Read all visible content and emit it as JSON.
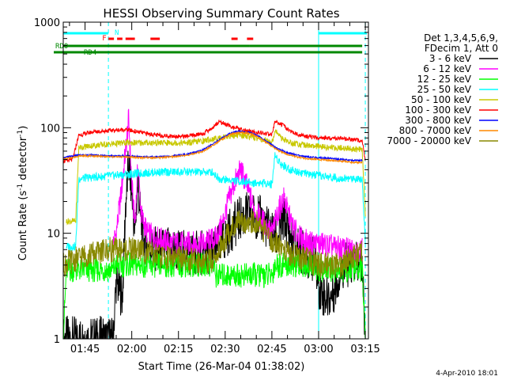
{
  "chart_data": {
    "type": "line",
    "title": "HESSI Observing Summary Count Rates",
    "xlabel": "Start Time (26-Mar-04 01:38:02)",
    "ylabel_main": "Count Rate (s",
    "ylabel_sup1": "-1",
    "ylabel_mid": " detector",
    "ylabel_sup2": "-1",
    "ylabel_end": ")",
    "yscale": "log",
    "ylim": [
      1,
      1000
    ],
    "xlim_min": [
      0,
      98
    ],
    "x_ticks": [
      {
        "min": 7,
        "label": "01:45"
      },
      {
        "min": 22,
        "label": "02:00"
      },
      {
        "min": 37,
        "label": "02:15"
      },
      {
        "min": 52,
        "label": "02:30"
      },
      {
        "min": 67,
        "label": "02:45"
      },
      {
        "min": 82,
        "label": "03:00"
      },
      {
        "min": 97,
        "label": "03:15"
      }
    ],
    "y_ticks": [
      {
        "v": 1,
        "label": "1"
      },
      {
        "v": 10,
        "label": "10"
      },
      {
        "v": 100,
        "label": "100"
      },
      {
        "v": 1000,
        "label": "1000"
      }
    ],
    "legend_header": [
      "Det 1,3,4,5,6,9,",
      "FDecim 1, Att 0"
    ],
    "series": [
      {
        "name": "3 - 6 keV",
        "color": "#000000",
        "points": [
          [
            0,
            1.0
          ],
          [
            2,
            1.0
          ],
          [
            16,
            1.0
          ],
          [
            17,
            3.5
          ],
          [
            19,
            2.5
          ],
          [
            20,
            18
          ],
          [
            21,
            45
          ],
          [
            22,
            25
          ],
          [
            23,
            10
          ],
          [
            24,
            30
          ],
          [
            25,
            12
          ],
          [
            26,
            8
          ],
          [
            30,
            7
          ],
          [
            35,
            7
          ],
          [
            40,
            6.5
          ],
          [
            45,
            6.5
          ],
          [
            49,
            7
          ],
          [
            51,
            8
          ],
          [
            53,
            10
          ],
          [
            55,
            12
          ],
          [
            57,
            14
          ],
          [
            59,
            15
          ],
          [
            61,
            15
          ],
          [
            63,
            14
          ],
          [
            65,
            12
          ],
          [
            67,
            10
          ],
          [
            69,
            9
          ],
          [
            71,
            14
          ],
          [
            72,
            11
          ],
          [
            74,
            8
          ],
          [
            76,
            7
          ],
          [
            79,
            6
          ],
          [
            81,
            5.5
          ],
          [
            82,
            3.2
          ],
          [
            84,
            2.5
          ],
          [
            86,
            2.5
          ],
          [
            90,
            5
          ],
          [
            93,
            5
          ],
          [
            96,
            5
          ],
          [
            97,
            1.0
          ]
        ]
      },
      {
        "name": "6 - 12 keV",
        "color": "#ff00ff",
        "points": [
          [
            16,
            8
          ],
          [
            17,
            10
          ],
          [
            19,
            30
          ],
          [
            20,
            60
          ],
          [
            21,
            120
          ],
          [
            22,
            30
          ],
          [
            23,
            12
          ],
          [
            24,
            45
          ],
          [
            25,
            15
          ],
          [
            27,
            10
          ],
          [
            30,
            9
          ],
          [
            35,
            8
          ],
          [
            40,
            8
          ],
          [
            45,
            8
          ],
          [
            49,
            9
          ],
          [
            51,
            12
          ],
          [
            53,
            20
          ],
          [
            55,
            30
          ],
          [
            57,
            40
          ],
          [
            59,
            28
          ],
          [
            61,
            18
          ],
          [
            63,
            14
          ],
          [
            65,
            12
          ],
          [
            67,
            10
          ],
          [
            69,
            16
          ],
          [
            71,
            22
          ],
          [
            72,
            16
          ],
          [
            74,
            11
          ],
          [
            76,
            9
          ],
          [
            79,
            8
          ],
          [
            82,
            8
          ],
          [
            86,
            7.5
          ],
          [
            90,
            7
          ],
          [
            93,
            7
          ],
          [
            96,
            7
          ]
        ]
      },
      {
        "name": "12 - 25 keV",
        "color": "#00ff00",
        "points": [
          [
            0,
            1.0
          ],
          [
            1,
            4.5
          ],
          [
            5,
            4.5
          ],
          [
            10,
            4.5
          ],
          [
            16,
            4.5
          ],
          [
            17,
            5
          ],
          [
            20,
            5
          ],
          [
            25,
            5
          ],
          [
            30,
            5
          ],
          [
            35,
            5
          ],
          [
            40,
            5
          ],
          [
            48,
            5
          ],
          [
            49,
            4
          ],
          [
            53,
            4
          ],
          [
            58,
            4
          ],
          [
            63,
            4
          ],
          [
            67,
            4
          ],
          [
            68,
            5
          ],
          [
            72,
            5
          ],
          [
            77,
            5
          ],
          [
            80,
            5
          ],
          [
            82,
            4.5
          ],
          [
            86,
            4.5
          ],
          [
            90,
            4.5
          ],
          [
            96,
            4.5
          ],
          [
            97,
            1.0
          ]
        ]
      },
      {
        "name": "25 - 50 keV",
        "color": "#00ffff",
        "points": [
          [
            1,
            7.5
          ],
          [
            2,
            7.5
          ],
          [
            4,
            7.5
          ],
          [
            5,
            33
          ],
          [
            10,
            34
          ],
          [
            15,
            35
          ],
          [
            20,
            36
          ],
          [
            25,
            37
          ],
          [
            30,
            38
          ],
          [
            35,
            38
          ],
          [
            40,
            38
          ],
          [
            45,
            38
          ],
          [
            48,
            38
          ],
          [
            50,
            33
          ],
          [
            53,
            32
          ],
          [
            57,
            31
          ],
          [
            61,
            30
          ],
          [
            65,
            30
          ],
          [
            67,
            29
          ],
          [
            68,
            55
          ],
          [
            70,
            45
          ],
          [
            73,
            40
          ],
          [
            76,
            38
          ],
          [
            79,
            36
          ],
          [
            82,
            35
          ],
          [
            86,
            34
          ],
          [
            90,
            33
          ],
          [
            93,
            33
          ],
          [
            96,
            33
          ],
          [
            97,
            8
          ]
        ]
      },
      {
        "name": "50 - 100 keV",
        "color": "#c8c800",
        "points": [
          [
            1,
            13
          ],
          [
            4,
            13
          ],
          [
            5,
            65
          ],
          [
            10,
            68
          ],
          [
            15,
            70
          ],
          [
            20,
            72
          ],
          [
            25,
            72
          ],
          [
            30,
            72
          ],
          [
            35,
            72
          ],
          [
            40,
            72
          ],
          [
            45,
            75
          ],
          [
            48,
            78
          ],
          [
            50,
            80
          ],
          [
            53,
            83
          ],
          [
            56,
            85
          ],
          [
            59,
            84
          ],
          [
            62,
            80
          ],
          [
            65,
            75
          ],
          [
            67,
            72
          ],
          [
            68,
            95
          ],
          [
            70,
            80
          ],
          [
            73,
            72
          ],
          [
            76,
            70
          ],
          [
            79,
            68
          ],
          [
            82,
            66
          ],
          [
            86,
            65
          ],
          [
            90,
            64
          ],
          [
            93,
            63
          ],
          [
            96,
            62
          ],
          [
            97,
            15
          ]
        ]
      },
      {
        "name": "100 - 300 keV",
        "color": "#ff0000",
        "points": [
          [
            0,
            48
          ],
          [
            3,
            50
          ],
          [
            5,
            85
          ],
          [
            10,
            92
          ],
          [
            15,
            94
          ],
          [
            20,
            96
          ],
          [
            25,
            90
          ],
          [
            30,
            85
          ],
          [
            35,
            83
          ],
          [
            40,
            83
          ],
          [
            45,
            88
          ],
          [
            48,
            100
          ],
          [
            50,
            115
          ],
          [
            53,
            105
          ],
          [
            56,
            98
          ],
          [
            59,
            93
          ],
          [
            62,
            90
          ],
          [
            65,
            88
          ],
          [
            67,
            86
          ],
          [
            68,
            115
          ],
          [
            70,
            108
          ],
          [
            73,
            92
          ],
          [
            76,
            85
          ],
          [
            79,
            82
          ],
          [
            82,
            80
          ],
          [
            86,
            80
          ],
          [
            90,
            78
          ],
          [
            93,
            77
          ],
          [
            96,
            76
          ],
          [
            97,
            48
          ]
        ]
      },
      {
        "name": "300 - 800 keV",
        "color": "#0000ff",
        "points": [
          [
            0,
            52
          ],
          [
            5,
            55
          ],
          [
            10,
            55
          ],
          [
            15,
            54
          ],
          [
            20,
            54
          ],
          [
            25,
            53
          ],
          [
            30,
            53
          ],
          [
            35,
            54
          ],
          [
            40,
            56
          ],
          [
            45,
            62
          ],
          [
            48,
            70
          ],
          [
            51,
            80
          ],
          [
            54,
            90
          ],
          [
            57,
            93
          ],
          [
            60,
            90
          ],
          [
            63,
            82
          ],
          [
            66,
            72
          ],
          [
            69,
            63
          ],
          [
            72,
            58
          ],
          [
            75,
            55
          ],
          [
            78,
            53
          ],
          [
            82,
            52
          ],
          [
            86,
            51
          ],
          [
            90,
            50
          ],
          [
            93,
            49
          ],
          [
            96,
            49
          ]
        ]
      },
      {
        "name": "800 - 7000 keV",
        "color": "#ff8800",
        "points": [
          [
            0,
            50
          ],
          [
            5,
            54
          ],
          [
            10,
            54
          ],
          [
            15,
            53
          ],
          [
            20,
            53
          ],
          [
            25,
            52
          ],
          [
            30,
            52
          ],
          [
            35,
            53
          ],
          [
            40,
            55
          ],
          [
            45,
            60
          ],
          [
            48,
            68
          ],
          [
            51,
            78
          ],
          [
            54,
            87
          ],
          [
            57,
            90
          ],
          [
            60,
            88
          ],
          [
            63,
            80
          ],
          [
            66,
            70
          ],
          [
            69,
            61
          ],
          [
            72,
            56
          ],
          [
            75,
            53
          ],
          [
            78,
            51
          ],
          [
            82,
            50
          ],
          [
            86,
            49
          ],
          [
            90,
            48
          ],
          [
            93,
            47
          ],
          [
            96,
            47
          ]
        ]
      },
      {
        "name": "7000 - 20000 keV",
        "color": "#888800",
        "points": [
          [
            0,
            5
          ],
          [
            3,
            5.5
          ],
          [
            6,
            6
          ],
          [
            10,
            6.5
          ],
          [
            15,
            7
          ],
          [
            20,
            7
          ],
          [
            25,
            7
          ],
          [
            30,
            6
          ],
          [
            35,
            6
          ],
          [
            40,
            5.5
          ],
          [
            45,
            5.5
          ],
          [
            48,
            5.5
          ],
          [
            51,
            8
          ],
          [
            54,
            11
          ],
          [
            57,
            13
          ],
          [
            60,
            13
          ],
          [
            63,
            12
          ],
          [
            66,
            9
          ],
          [
            69,
            8
          ],
          [
            72,
            6.5
          ],
          [
            75,
            6
          ],
          [
            79,
            5.5
          ],
          [
            82,
            5
          ],
          [
            86,
            5
          ],
          [
            90,
            5
          ],
          [
            93,
            6
          ],
          [
            96,
            6.5
          ]
        ]
      }
    ],
    "annotations": {
      "n_label": "N",
      "f_label": "F",
      "rd0_label": "RD0",
      "rd4_label": "RD4",
      "n_color": "#00ffff",
      "f_color": "#ff0000",
      "rd_color": "#008800",
      "n_bars_min": [
        [
          0,
          14.5
        ],
        [
          82,
          97.5
        ]
      ],
      "f_bars_min": [
        [
          14.5,
          19
        ],
        [
          20,
          23
        ],
        [
          28,
          31
        ],
        [
          54,
          56
        ],
        [
          59,
          61
        ]
      ],
      "rd0_bars_min": [
        [
          0,
          49
        ],
        [
          49,
          59.8
        ],
        [
          59.8,
          96
        ]
      ],
      "rd4_bars_min": [
        [
          0,
          49
        ],
        [
          49,
          96
        ]
      ],
      "vlines_solid_min": [
        0,
        82
      ],
      "vlines_dash_min": [
        14.5,
        97
      ]
    },
    "grid": false
  },
  "footer_date": "4-Apr-2010 18:01"
}
